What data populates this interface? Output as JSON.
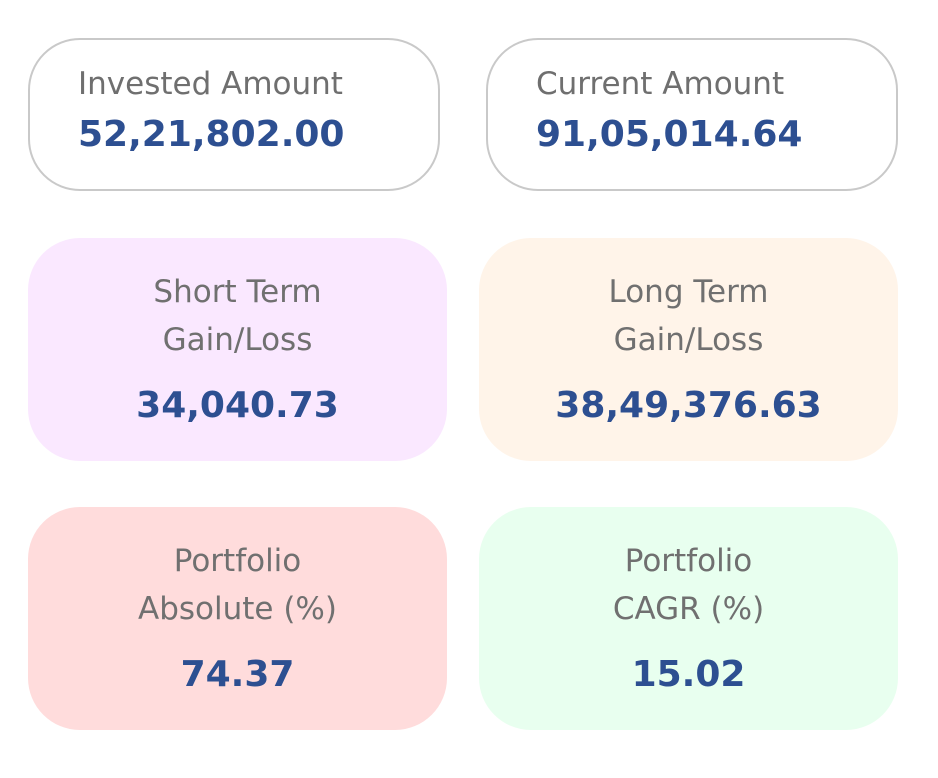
{
  "cards": {
    "invested": {
      "label": "Invested Amount",
      "value": "52,21,802.00"
    },
    "current": {
      "label": "Current Amount",
      "value": "91,05,014.64"
    },
    "short_term": {
      "label_line1": "Short Term",
      "label_line2": "Gain/Loss",
      "value": "34,040.73",
      "bg": "#fae8ff"
    },
    "long_term": {
      "label_line1": "Long Term",
      "label_line2": "Gain/Loss",
      "value": "38,49,376.63",
      "bg": "#fff4e9"
    },
    "absolute": {
      "label_line1": "Portfolio",
      "label_line2": "Absolute (%)",
      "value": "74.37",
      "bg": "#ffdcdc"
    },
    "cagr": {
      "label_line1": "Portfolio",
      "label_line2": "CAGR (%)",
      "value": "15.02",
      "bg": "#e8ffef"
    }
  },
  "colors": {
    "value_text": "#2d4f91",
    "label_text": "#6f6f6f",
    "outline_border": "#c9c9c9"
  }
}
